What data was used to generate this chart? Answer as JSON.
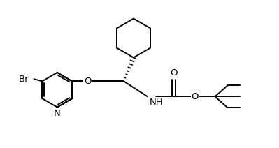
{
  "background_color": "#ffffff",
  "line_color": "#000000",
  "line_width": 1.4,
  "font_size": 9.5,
  "figw": 3.99,
  "figh": 2.12,
  "dpi": 100,
  "xlim": [
    0,
    10
  ],
  "ylim": [
    0,
    5.3
  ]
}
